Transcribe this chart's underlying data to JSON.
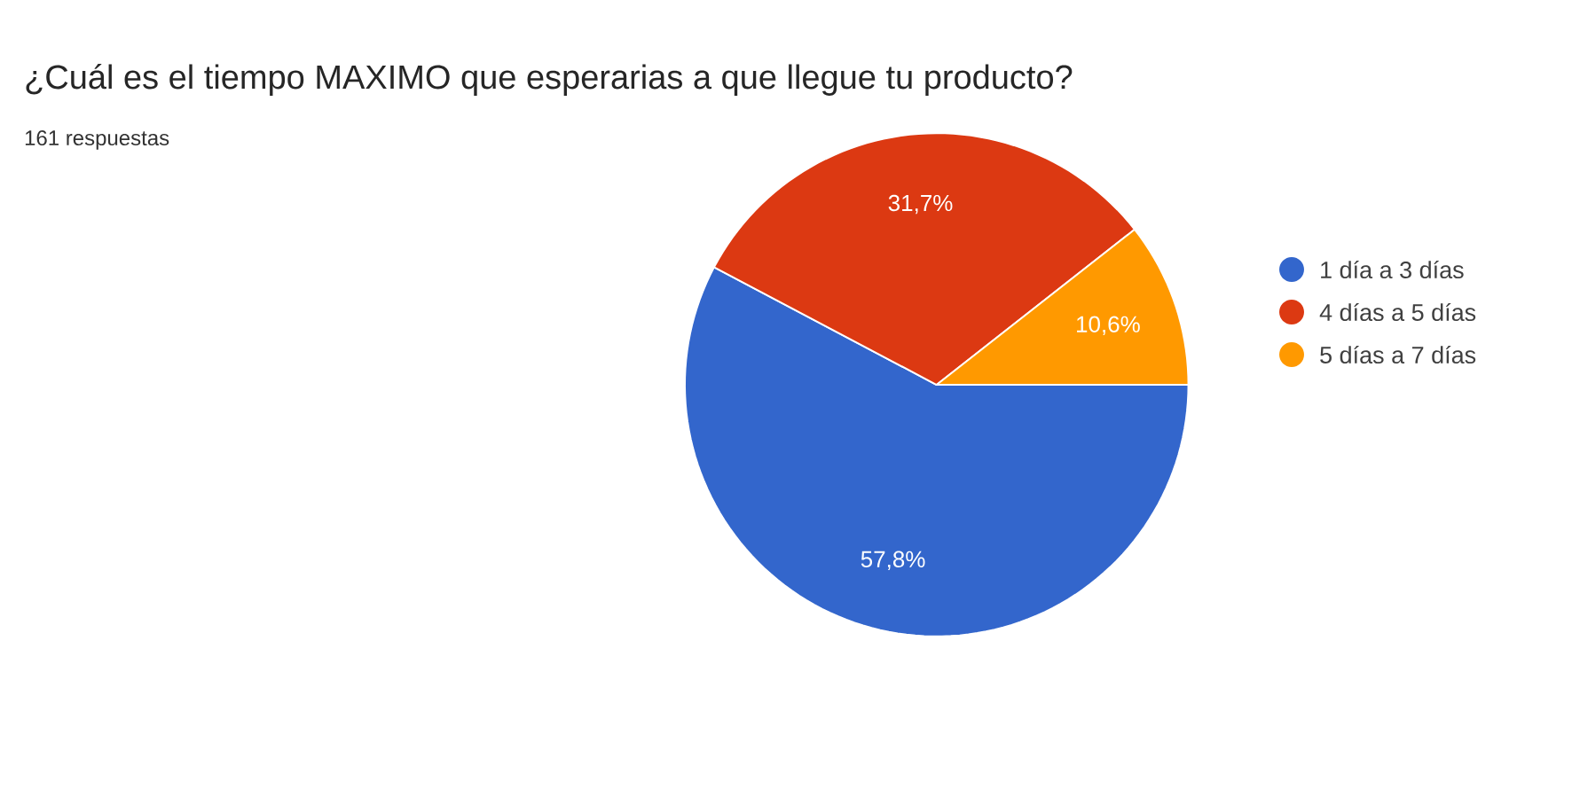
{
  "chart_data": {
    "type": "pie",
    "title": "¿Cuál es el tiempo MAXIMO que esperarias a que llegue tu producto?",
    "subtitle": "161 respuestas",
    "categories": [
      "1 día a 3 días",
      "4 días a 5 días",
      "5 días a 7 días"
    ],
    "values": [
      57.8,
      31.7,
      10.6
    ],
    "value_labels": [
      "57,8%",
      "31,7%",
      "10,6%"
    ],
    "colors": [
      "#3366cc",
      "#dc3912",
      "#ff9900"
    ],
    "legend": "right"
  }
}
